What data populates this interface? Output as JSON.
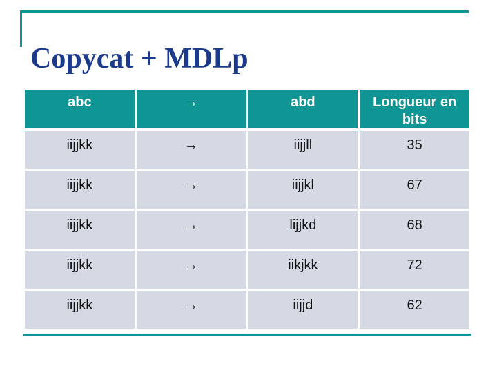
{
  "slide": {
    "title": "Copycat + MDLp",
    "accent_color": "#0f9694",
    "title_color": "#1b3a8c",
    "row_bg_color": "#d4d9e4",
    "header_text_color": "#ffffff"
  },
  "table": {
    "headers": [
      "abc",
      "→",
      "abd",
      "Longueur en bits"
    ],
    "rows": [
      [
        "iijjkk",
        "→",
        "iijjll",
        "35"
      ],
      [
        "iijjkk",
        "→",
        "iijjkl",
        "67"
      ],
      [
        "iijjkk",
        "→",
        "lijjkd",
        "68"
      ],
      [
        "iijjkk",
        "→",
        "iikjkk",
        "72"
      ],
      [
        "iijjkk",
        "→",
        "iijjd",
        "62"
      ]
    ]
  }
}
